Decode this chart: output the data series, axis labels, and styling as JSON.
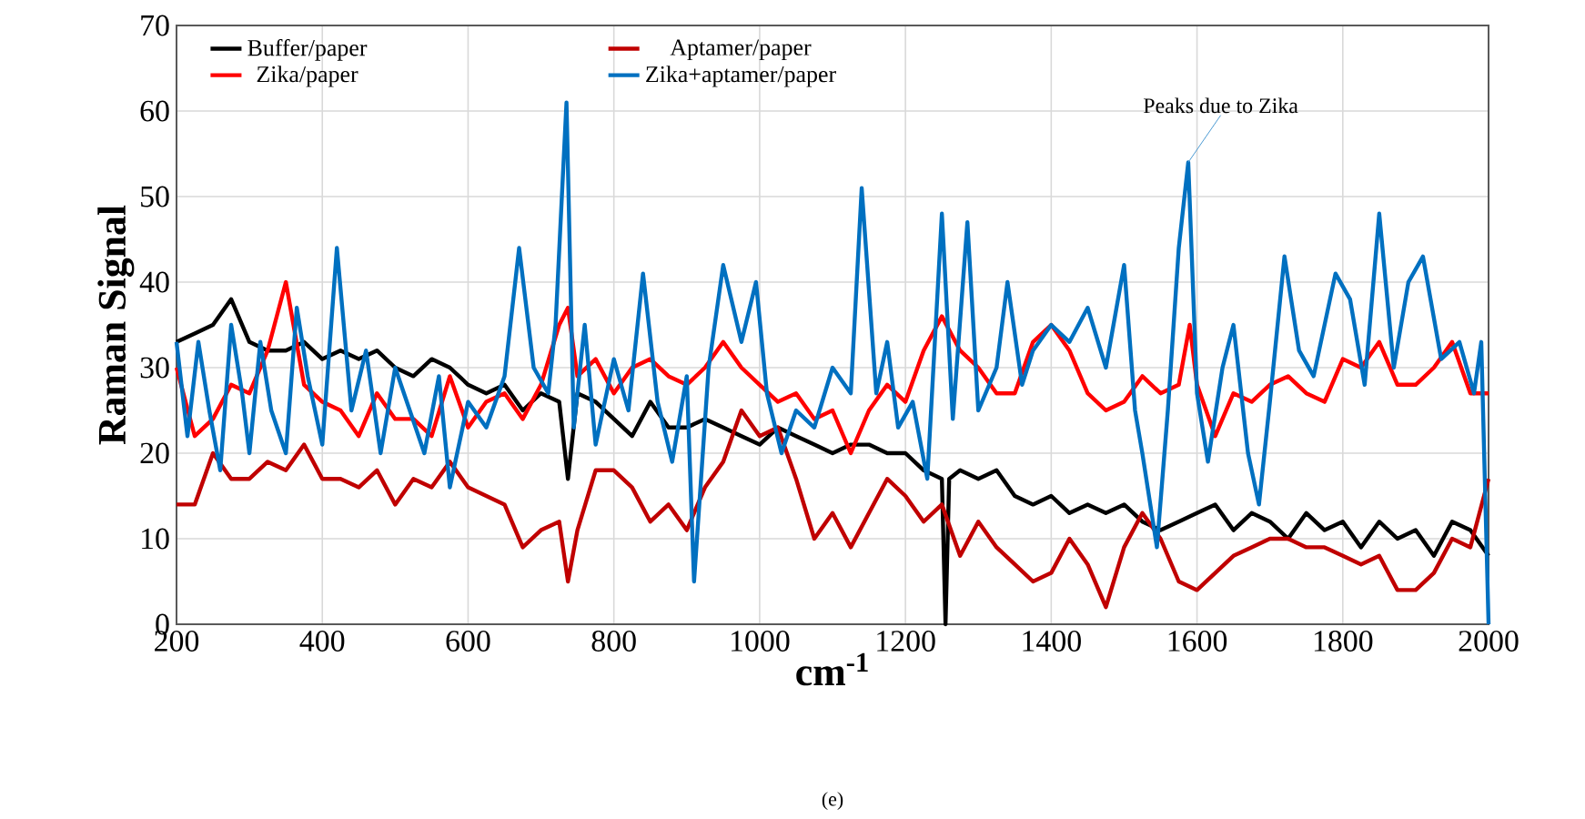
{
  "chart_data": {
    "type": "line",
    "xlabel": "cm$^{-1}$",
    "ylabel": "Raman Signal",
    "xlim": [
      200,
      2000
    ],
    "ylim": [
      0,
      70
    ],
    "xticks": [
      200,
      400,
      600,
      800,
      1000,
      1200,
      1400,
      1600,
      1800,
      2000
    ],
    "yticks": [
      0,
      10,
      20,
      30,
      40,
      50,
      60,
      70
    ],
    "grid": true,
    "legend": "top",
    "marker": "none",
    "line_style": "solid",
    "annotations": [
      {
        "text": "Peaks due to Zika",
        "x": 1588,
        "y": 54
      },
      "(e)"
    ],
    "series": [
      {
        "name": "Buffer/paper",
        "color": "#000000",
        "x": [
          200,
          225,
          250,
          275,
          300,
          325,
          350,
          375,
          400,
          425,
          450,
          475,
          500,
          525,
          550,
          575,
          600,
          625,
          650,
          675,
          700,
          725,
          737,
          750,
          775,
          800,
          825,
          850,
          875,
          900,
          925,
          950,
          975,
          1000,
          1025,
          1050,
          1075,
          1100,
          1125,
          1150,
          1175,
          1200,
          1225,
          1250,
          1255,
          1260,
          1275,
          1300,
          1325,
          1350,
          1375,
          1400,
          1425,
          1450,
          1475,
          1500,
          1525,
          1550,
          1575,
          1600,
          1625,
          1650,
          1675,
          1700,
          1725,
          1750,
          1775,
          1800,
          1825,
          1850,
          1875,
          1900,
          1925,
          1950,
          1975,
          2000
        ],
        "values": [
          33,
          34,
          35,
          38,
          33,
          32,
          32,
          33,
          31,
          32,
          31,
          32,
          30,
          29,
          31,
          30,
          28,
          27,
          28,
          25,
          27,
          26,
          17,
          27,
          26,
          24,
          22,
          26,
          23,
          23,
          24,
          23,
          22,
          21,
          23,
          22,
          21,
          20,
          21,
          21,
          20,
          20,
          18,
          17,
          0,
          17,
          18,
          17,
          18,
          15,
          14,
          15,
          13,
          14,
          13,
          14,
          12,
          11,
          12,
          13,
          14,
          11,
          13,
          12,
          10,
          13,
          11,
          12,
          9,
          12,
          10,
          11,
          8,
          12,
          11,
          8
        ]
      },
      {
        "name": "Aptamer/paper",
        "color": "#c00000",
        "x": [
          200,
          225,
          250,
          275,
          300,
          325,
          350,
          375,
          400,
          425,
          450,
          475,
          500,
          525,
          550,
          575,
          600,
          625,
          650,
          675,
          700,
          725,
          737,
          750,
          775,
          800,
          825,
          850,
          875,
          900,
          925,
          950,
          975,
          1000,
          1025,
          1050,
          1075,
          1100,
          1125,
          1150,
          1175,
          1200,
          1225,
          1250,
          1275,
          1300,
          1325,
          1350,
          1375,
          1400,
          1425,
          1450,
          1475,
          1500,
          1525,
          1550,
          1575,
          1600,
          1625,
          1650,
          1675,
          1700,
          1725,
          1750,
          1775,
          1800,
          1825,
          1850,
          1875,
          1900,
          1925,
          1950,
          1975,
          2000
        ],
        "values": [
          14,
          14,
          20,
          17,
          17,
          19,
          18,
          21,
          17,
          17,
          16,
          18,
          14,
          17,
          16,
          19,
          16,
          15,
          14,
          9,
          11,
          12,
          5,
          11,
          18,
          18,
          16,
          12,
          14,
          11,
          16,
          19,
          25,
          22,
          23,
          17,
          10,
          13,
          9,
          13,
          17,
          15,
          12,
          14,
          8,
          12,
          9,
          7,
          5,
          6,
          10,
          7,
          2,
          9,
          13,
          10,
          5,
          4,
          6,
          8,
          9,
          10,
          10,
          9,
          9,
          8,
          7,
          8,
          4,
          4,
          6,
          10,
          9,
          17
        ]
      },
      {
        "name": "Zika/paper",
        "color": "#ff0000",
        "x": [
          200,
          225,
          250,
          275,
          300,
          325,
          350,
          375,
          400,
          425,
          450,
          475,
          500,
          525,
          550,
          575,
          600,
          625,
          650,
          675,
          700,
          725,
          737,
          750,
          775,
          800,
          825,
          850,
          875,
          900,
          925,
          950,
          975,
          1000,
          1025,
          1050,
          1075,
          1100,
          1125,
          1150,
          1175,
          1200,
          1225,
          1250,
          1275,
          1300,
          1325,
          1350,
          1375,
          1400,
          1425,
          1450,
          1475,
          1500,
          1525,
          1550,
          1575,
          1590,
          1600,
          1625,
          1650,
          1675,
          1700,
          1725,
          1750,
          1775,
          1800,
          1825,
          1850,
          1875,
          1900,
          1925,
          1950,
          1975,
          2000
        ],
        "values": [
          30,
          22,
          24,
          28,
          27,
          32,
          40,
          28,
          26,
          25,
          22,
          27,
          24,
          24,
          22,
          29,
          23,
          26,
          27,
          24,
          28,
          35,
          37,
          29,
          31,
          27,
          30,
          31,
          29,
          28,
          30,
          33,
          30,
          28,
          26,
          27,
          24,
          25,
          20,
          25,
          28,
          26,
          32,
          36,
          32,
          30,
          27,
          27,
          33,
          35,
          32,
          27,
          25,
          26,
          29,
          27,
          28,
          35,
          28,
          22,
          27,
          26,
          28,
          29,
          27,
          26,
          31,
          30,
          33,
          28,
          28,
          30,
          33,
          27,
          27
        ]
      },
      {
        "name": "Zika+aptamer/paper",
        "color": "#0070c0",
        "x": [
          200,
          215,
          230,
          245,
          260,
          275,
          290,
          300,
          315,
          330,
          350,
          365,
          380,
          400,
          420,
          440,
          460,
          480,
          500,
          520,
          540,
          560,
          575,
          600,
          625,
          650,
          670,
          690,
          710,
          720,
          735,
          745,
          760,
          775,
          800,
          820,
          840,
          860,
          880,
          900,
          910,
          930,
          950,
          975,
          995,
          1010,
          1030,
          1050,
          1075,
          1100,
          1125,
          1140,
          1160,
          1175,
          1190,
          1210,
          1230,
          1250,
          1265,
          1285,
          1300,
          1325,
          1340,
          1360,
          1375,
          1400,
          1425,
          1450,
          1475,
          1500,
          1515,
          1525,
          1545,
          1560,
          1575,
          1588,
          1600,
          1615,
          1635,
          1650,
          1670,
          1685,
          1700,
          1720,
          1740,
          1760,
          1790,
          1810,
          1830,
          1850,
          1870,
          1890,
          1910,
          1935,
          1960,
          1980,
          1990,
          2000
        ],
        "values": [
          33,
          22,
          33,
          25,
          18,
          35,
          27,
          20,
          33,
          25,
          20,
          37,
          29,
          21,
          44,
          25,
          32,
          20,
          30,
          25,
          20,
          29,
          16,
          26,
          23,
          29,
          44,
          30,
          27,
          35,
          61,
          23,
          35,
          21,
          31,
          25,
          41,
          26,
          19,
          29,
          5,
          30,
          42,
          33,
          40,
          27,
          20,
          25,
          23,
          30,
          27,
          51,
          27,
          33,
          23,
          26,
          17,
          48,
          24,
          47,
          25,
          30,
          40,
          28,
          32,
          35,
          33,
          37,
          30,
          42,
          25,
          20,
          9,
          25,
          44,
          54,
          27,
          19,
          30,
          35,
          20,
          14,
          26,
          43,
          32,
          29,
          41,
          38,
          28,
          48,
          30,
          40,
          43,
          31,
          33,
          27,
          33,
          0
        ]
      }
    ]
  }
}
